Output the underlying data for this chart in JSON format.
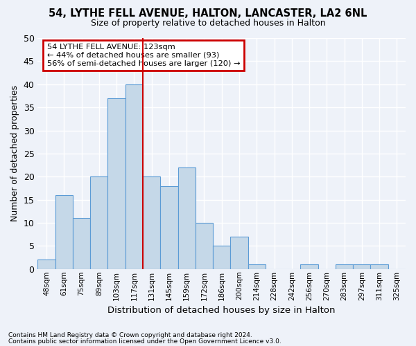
{
  "title1": "54, LYTHE FELL AVENUE, HALTON, LANCASTER, LA2 6NL",
  "title2": "Size of property relative to detached houses in Halton",
  "xlabel": "Distribution of detached houses by size in Halton",
  "ylabel": "Number of detached properties",
  "categories": [
    "48sqm",
    "61sqm",
    "75sqm",
    "89sqm",
    "103sqm",
    "117sqm",
    "131sqm",
    "145sqm",
    "159sqm",
    "172sqm",
    "186sqm",
    "200sqm",
    "214sqm",
    "228sqm",
    "242sqm",
    "256sqm",
    "270sqm",
    "283sqm",
    "297sqm",
    "311sqm",
    "325sqm"
  ],
  "values": [
    2,
    16,
    11,
    20,
    37,
    40,
    20,
    18,
    22,
    10,
    5,
    7,
    1,
    0,
    0,
    1,
    0,
    1,
    1,
    1,
    0
  ],
  "bar_color": "#c5d8e8",
  "bar_edge_color": "#5b9bd5",
  "red_line_index": 6,
  "annotation_title": "54 LYTHE FELL AVENUE: 123sqm",
  "annotation_line1": "← 44% of detached houses are smaller (93)",
  "annotation_line2": "56% of semi-detached houses are larger (120) →",
  "annotation_box_color": "#ffffff",
  "annotation_box_edge": "#cc0000",
  "ylim": [
    0,
    50
  ],
  "yticks": [
    0,
    5,
    10,
    15,
    20,
    25,
    30,
    35,
    40,
    45,
    50
  ],
  "background_color": "#eef2f9",
  "grid_color": "#ffffff",
  "footer1": "Contains HM Land Registry data © Crown copyright and database right 2024.",
  "footer2": "Contains public sector information licensed under the Open Government Licence v3.0."
}
